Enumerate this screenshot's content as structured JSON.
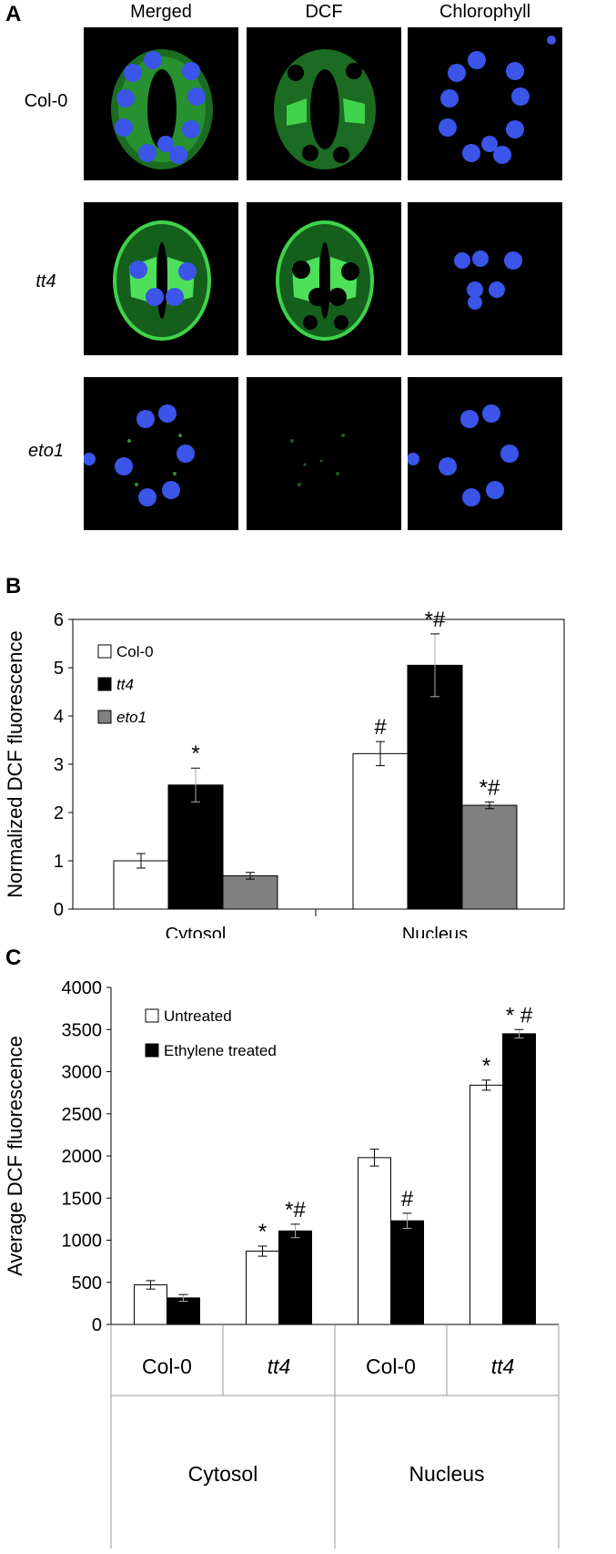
{
  "panelA": {
    "letter": "A",
    "columns": [
      "Merged",
      "DCF",
      "Chlorophyll"
    ],
    "rows": [
      {
        "label": "Col-0",
        "italic": false
      },
      {
        "label": "tt4",
        "italic": true
      },
      {
        "label": "eto1",
        "italic": true
      }
    ],
    "colors": {
      "dcf": "#3fd24a",
      "chlorophyll": "#3a55e8",
      "background": "#000000"
    }
  },
  "chart_data": [
    {
      "panel": "B",
      "type": "bar",
      "ylabel": "Normalized DCF fluorescence",
      "ylim": [
        0,
        6
      ],
      "yticks": [
        "0",
        "1",
        "2",
        "3",
        "4",
        "5",
        "6"
      ],
      "categories": [
        "Cytosol",
        "Nucleus"
      ],
      "legend_position": "top-left",
      "series": [
        {
          "name": "Col-0",
          "italic": false,
          "color": "#ffffff",
          "values": [
            1.0,
            3.22
          ],
          "errors": [
            0.15,
            0.25
          ],
          "annotations": [
            "",
            "#"
          ]
        },
        {
          "name": "tt4",
          "italic": true,
          "color": "#000000",
          "values": [
            2.57,
            5.05
          ],
          "errors": [
            0.35,
            0.65
          ],
          "annotations": [
            "*",
            "*#"
          ]
        },
        {
          "name": "eto1",
          "italic": true,
          "color": "#808080",
          "values": [
            0.69,
            2.15
          ],
          "errors": [
            0.07,
            0.07
          ],
          "annotations": [
            "",
            "*#"
          ]
        }
      ]
    },
    {
      "panel": "C",
      "type": "bar",
      "ylabel": "Average DCF fluorescence",
      "ylim": [
        0,
        4000
      ],
      "yticks": [
        "0",
        "500",
        "1000",
        "1500",
        "2000",
        "2500",
        "3000",
        "3500",
        "4000"
      ],
      "categories": [
        "Col-0",
        "tt4",
        "Col-0",
        "tt4"
      ],
      "category_italic": [
        false,
        true,
        false,
        true
      ],
      "groups": [
        "Cytosol",
        "Nucleus"
      ],
      "legend_position": "top-left",
      "series": [
        {
          "name": "Untreated",
          "color": "#ffffff",
          "values": [
            470,
            870,
            1980,
            2840
          ],
          "errors": [
            50,
            60,
            100,
            60
          ],
          "annotations": [
            "",
            "*",
            "",
            "*"
          ]
        },
        {
          "name": "Ethylene treated",
          "color": "#000000",
          "values": [
            315,
            1110,
            1230,
            3450
          ],
          "errors": [
            40,
            80,
            90,
            50
          ],
          "annotations": [
            "",
            "*#",
            "#",
            "* #"
          ]
        }
      ]
    }
  ]
}
